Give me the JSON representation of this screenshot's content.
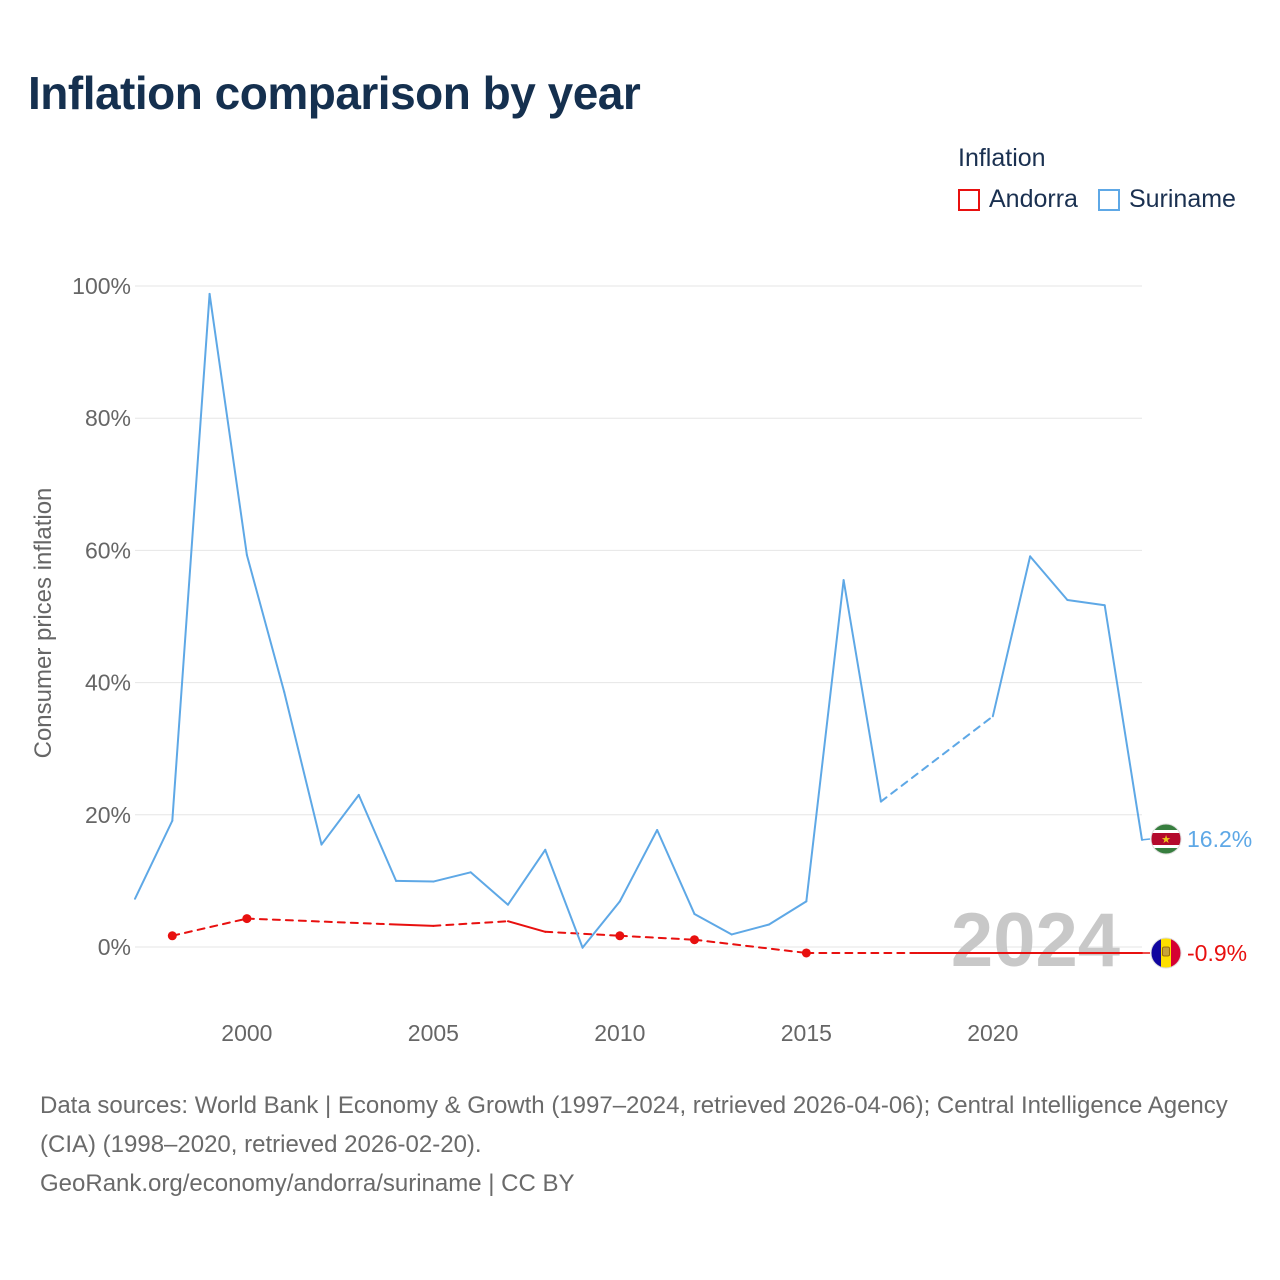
{
  "title": "Inflation comparison by year",
  "legend": {
    "title": "Inflation",
    "items": [
      {
        "label": "Andorra",
        "color": "#e8100f"
      },
      {
        "label": "Suriname",
        "color": "#5ea8e6"
      }
    ]
  },
  "chart_data": {
    "type": "line",
    "title": "Inflation comparison by year",
    "ylabel": "Consumer prices inflation",
    "xlabel": "",
    "xlim": [
      1997,
      2024
    ],
    "ylim": [
      -10,
      100
    ],
    "x_ticks": [
      2000,
      2005,
      2010,
      2015,
      2020
    ],
    "x_tick_labels": [
      "2000",
      "2005",
      "2010",
      "2015",
      "2020"
    ],
    "y_ticks": [
      0,
      20,
      40,
      60,
      80,
      100
    ],
    "y_tick_labels": [
      "0%",
      "20%",
      "40%",
      "60%",
      "80%",
      "100%"
    ],
    "grid": true,
    "year_watermark": "2024",
    "series": [
      {
        "name": "Suriname",
        "color": "#5ea8e6",
        "end_label": "16.2%",
        "flag": "suriname-flag",
        "points": [
          [
            1997,
            7.3
          ],
          [
            1998,
            19.1
          ],
          [
            1999,
            98.8
          ],
          [
            2000,
            59.3
          ],
          [
            2001,
            38.6
          ],
          [
            2002,
            15.5
          ],
          [
            2003,
            23.0
          ],
          [
            2004,
            10.0
          ],
          [
            2005,
            9.9
          ],
          [
            2006,
            11.3
          ],
          [
            2007,
            6.4
          ],
          [
            2008,
            14.7
          ],
          [
            2009,
            -0.1
          ],
          [
            2010,
            6.9
          ],
          [
            2011,
            17.7
          ],
          [
            2012,
            5.0
          ],
          [
            2013,
            1.9
          ],
          [
            2014,
            3.4
          ],
          [
            2015,
            6.9
          ],
          [
            2016,
            55.5
          ],
          [
            2017,
            22.0
          ],
          [
            2020,
            34.9
          ],
          [
            2021,
            59.1
          ],
          [
            2022,
            52.5
          ],
          [
            2023,
            51.7
          ],
          [
            2024,
            16.2
          ]
        ],
        "dashed_segments": [
          [
            2017,
            2020
          ]
        ]
      },
      {
        "name": "Andorra",
        "color": "#e8100f",
        "end_label": "-0.9%",
        "flag": "andorra-flag",
        "points": [
          [
            1998,
            1.7
          ],
          [
            2000,
            4.3
          ],
          [
            2004,
            3.4
          ],
          [
            2005,
            3.2
          ],
          [
            2007,
            3.9
          ],
          [
            2008,
            2.3
          ],
          [
            2010,
            1.7
          ],
          [
            2012,
            1.1
          ],
          [
            2015,
            -0.9
          ],
          [
            2018,
            -0.9
          ],
          [
            2024,
            -0.9
          ]
        ],
        "markers": [
          1998,
          2000,
          2010,
          2012,
          2015
        ],
        "dashed_segments": [
          [
            1998,
            2000
          ],
          [
            2000,
            2004
          ],
          [
            2005,
            2007
          ],
          [
            2008,
            2010
          ],
          [
            2010,
            2012
          ],
          [
            2012,
            2015
          ],
          [
            2015,
            2018
          ]
        ]
      }
    ]
  },
  "footer": {
    "sources": "Data sources: World Bank | Economy & Growth (1997–2024, retrieved 2026-04-06); Central Intelligence Agency (CIA) (1998–2020, retrieved 2026-02-20).",
    "site": "GeoRank.org/economy/andorra/suriname | CC BY"
  }
}
